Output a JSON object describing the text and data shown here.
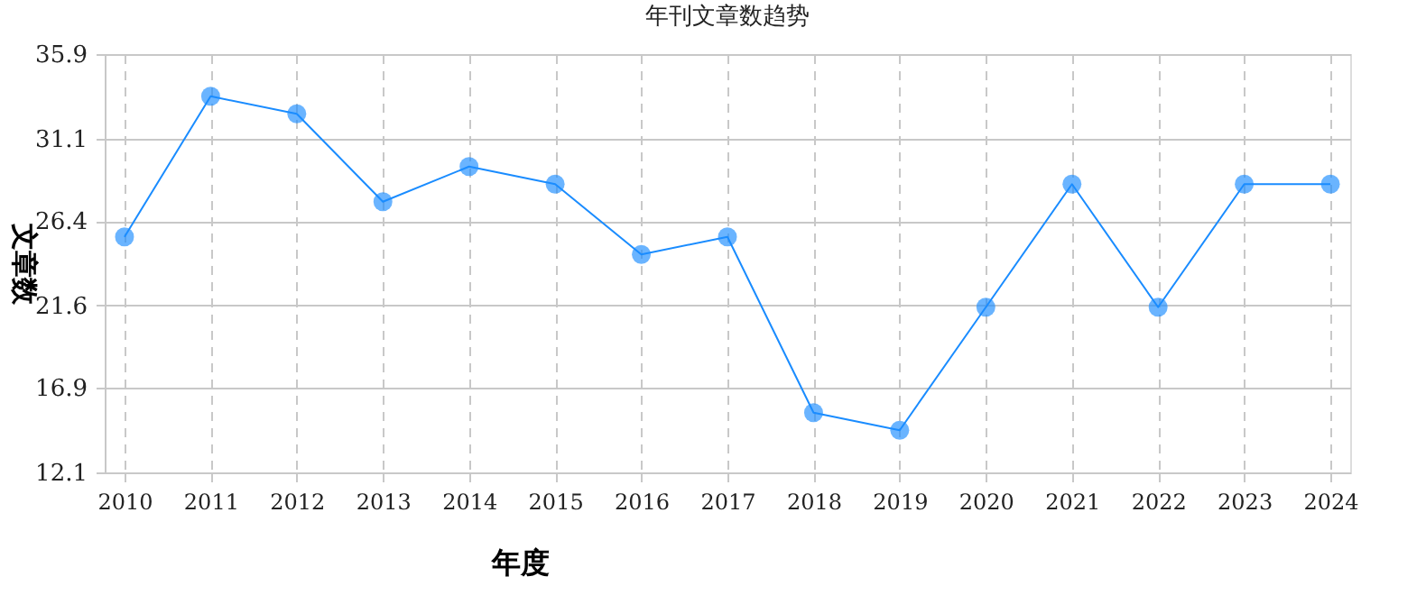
{
  "chart_data": {
    "type": "line",
    "title": "年刊文章数趋势",
    "xlabel": "年度",
    "ylabel": "文章数",
    "categories": [
      "2010",
      "2011",
      "2012",
      "2013",
      "2014",
      "2015",
      "2016",
      "2017",
      "2018",
      "2019",
      "2020",
      "2021",
      "2022",
      "2023",
      "2024"
    ],
    "series": [
      {
        "color": "#1a8cff",
        "values": [
          25.5,
          33.5,
          32.5,
          27.5,
          29.5,
          28.5,
          24.5,
          25.5,
          15.5,
          14.5,
          21.5,
          28.5,
          21.5,
          28.5,
          28.5
        ]
      }
    ],
    "ylim": [
      12.1,
      35.9
    ],
    "yticks": [
      12.1,
      16.9,
      21.6,
      26.4,
      31.1,
      35.9
    ],
    "grid": true,
    "marker": "circle",
    "legend": false
  }
}
